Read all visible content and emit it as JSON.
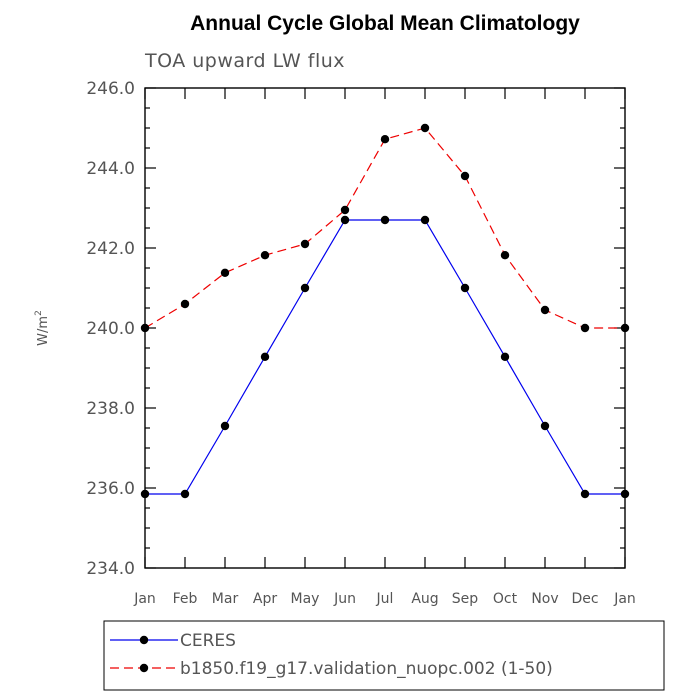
{
  "chart_data": {
    "type": "line",
    "title": "Annual Cycle Global Mean Climatology",
    "subtitle": "TOA upward LW flux",
    "ylabel_base": "W/m",
    "ylabel_sup": "2",
    "xlabel": "",
    "categories": [
      "Jan",
      "Feb",
      "Mar",
      "Apr",
      "May",
      "Jun",
      "Jul",
      "Aug",
      "Sep",
      "Oct",
      "Nov",
      "Dec",
      "Jan"
    ],
    "ylim": [
      234.0,
      246.0
    ],
    "yticks": [
      "234.0",
      "236.0",
      "238.0",
      "240.0",
      "242.0",
      "244.0",
      "246.0"
    ],
    "series": [
      {
        "name": "CERES",
        "color": "#0000ee",
        "dash": "solid",
        "values": [
          235.85,
          235.85,
          237.55,
          239.28,
          241.0,
          242.7,
          242.7,
          242.7,
          241.0,
          239.28,
          237.55,
          235.85,
          235.85
        ]
      },
      {
        "name": "b1850.f19_g17.validation_nuopc.002 (1-50)",
        "color": "#ee0000",
        "dash": "dashed",
        "values": [
          240.0,
          240.6,
          241.38,
          241.82,
          242.1,
          242.95,
          244.72,
          245.0,
          243.8,
          241.82,
          240.45,
          240.0,
          240.0
        ]
      }
    ],
    "grid": false,
    "legend": "bottom"
  }
}
